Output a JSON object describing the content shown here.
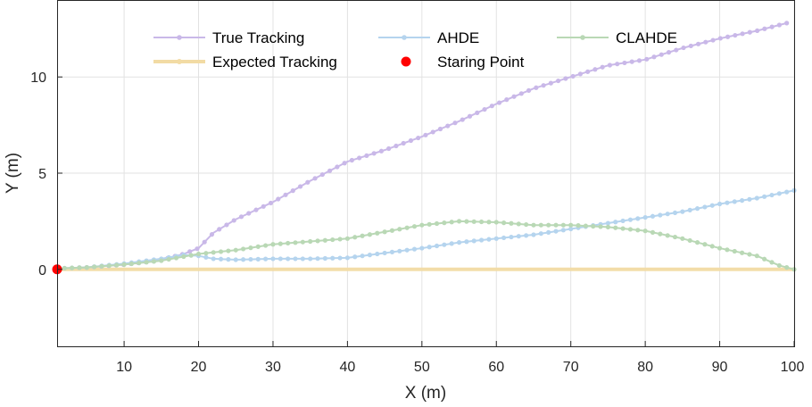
{
  "chart_data": {
    "type": "line",
    "xlabel": "X (m)",
    "ylabel": "Y (m)",
    "xlim": [
      1,
      100
    ],
    "ylim": [
      -4,
      14
    ],
    "x_ticks": [
      10,
      20,
      30,
      40,
      50,
      60,
      70,
      80,
      90,
      100
    ],
    "y_ticks": [
      0,
      5,
      10
    ],
    "grid": true,
    "legend": {
      "placement": "top",
      "columns": 3
    },
    "series": [
      {
        "name": "True Tracking",
        "color": "#c9b8e8",
        "marker": "dot",
        "x": [
          1,
          5,
          10,
          15,
          18,
          20,
          22,
          25,
          30,
          35,
          40,
          45,
          50,
          55,
          60,
          65,
          70,
          75,
          80,
          85,
          90,
          95,
          99
        ],
        "y": [
          0.05,
          0.1,
          0.25,
          0.5,
          0.8,
          1.1,
          1.9,
          2.6,
          3.5,
          4.6,
          5.6,
          6.2,
          6.9,
          7.7,
          8.6,
          9.4,
          10.0,
          10.6,
          10.9,
          11.5,
          12.0,
          12.4,
          12.8
        ]
      },
      {
        "name": "AHDE",
        "color": "#b5d4ee",
        "marker": "dot",
        "x": [
          1,
          5,
          10,
          15,
          18,
          20,
          22,
          25,
          30,
          35,
          40,
          45,
          50,
          55,
          60,
          65,
          70,
          75,
          80,
          85,
          90,
          95,
          100
        ],
        "y": [
          0.05,
          0.1,
          0.3,
          0.55,
          0.75,
          0.7,
          0.55,
          0.5,
          0.55,
          0.55,
          0.6,
          0.85,
          1.1,
          1.4,
          1.6,
          1.8,
          2.1,
          2.4,
          2.7,
          3.0,
          3.4,
          3.7,
          4.1
        ]
      },
      {
        "name": "CLAHDE",
        "color": "#b9d8b5",
        "marker": "dot",
        "x": [
          1,
          5,
          10,
          15,
          20,
          25,
          30,
          35,
          40,
          45,
          50,
          55,
          60,
          65,
          70,
          75,
          80,
          85,
          90,
          95,
          98,
          100
        ],
        "y": [
          0.05,
          0.1,
          0.25,
          0.45,
          0.8,
          1.0,
          1.3,
          1.45,
          1.6,
          1.95,
          2.3,
          2.5,
          2.45,
          2.3,
          2.3,
          2.2,
          2.0,
          1.6,
          1.1,
          0.7,
          0.2,
          0.0
        ]
      },
      {
        "name": "Expected Tracking",
        "color": "#f2dba4",
        "marker": "line",
        "x": [
          1,
          100
        ],
        "y": [
          0,
          0
        ]
      },
      {
        "name": "Staring Point",
        "color": "#ff0000",
        "marker": "point",
        "x": [
          1
        ],
        "y": [
          0
        ]
      }
    ]
  }
}
